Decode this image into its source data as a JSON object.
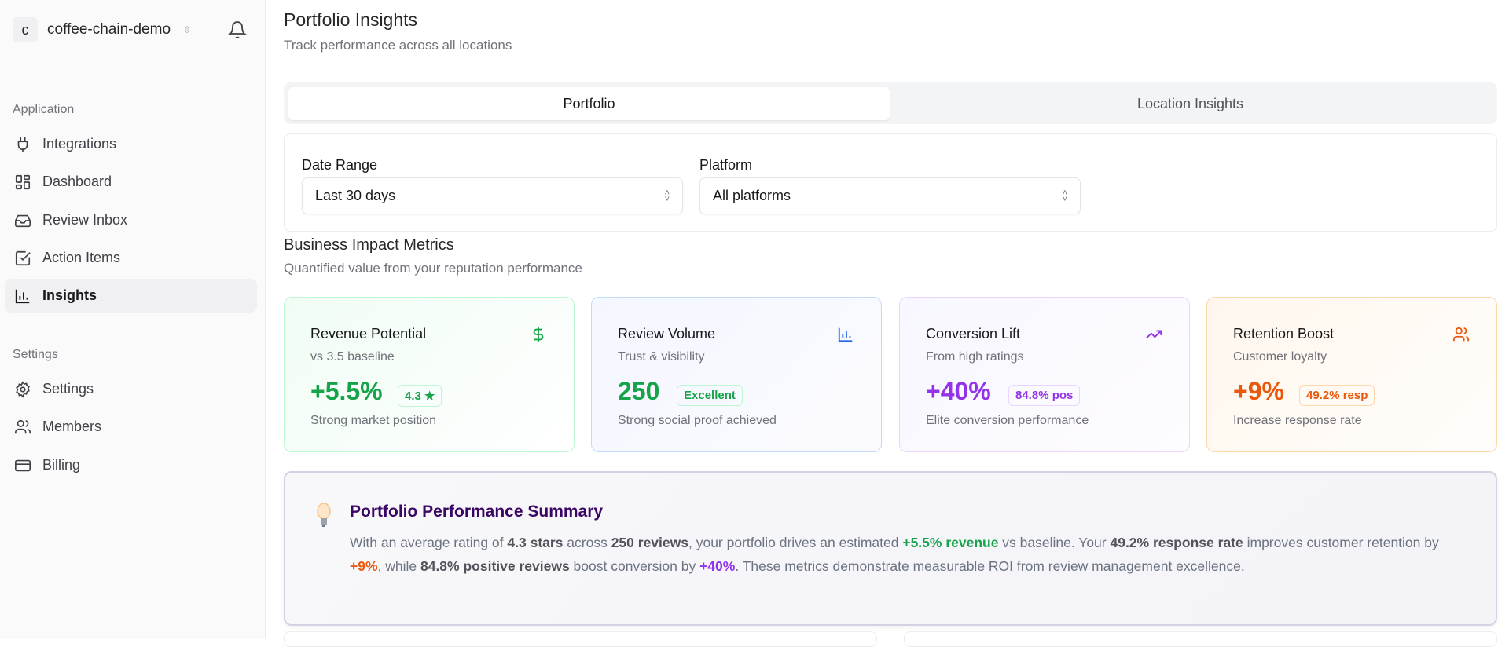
{
  "sidebar": {
    "workspace": {
      "initial": "c",
      "name": "coffee-chain-demo"
    },
    "sections": [
      {
        "label": "Application",
        "items": [
          {
            "label": "Integrations",
            "icon": "plug-icon"
          },
          {
            "label": "Dashboard",
            "icon": "layout-grid-icon"
          },
          {
            "label": "Review Inbox",
            "icon": "inbox-icon"
          },
          {
            "label": "Action Items",
            "icon": "check-square-icon"
          },
          {
            "label": "Insights",
            "icon": "bar-chart-icon",
            "active": true
          }
        ]
      },
      {
        "label": "Settings",
        "items": [
          {
            "label": "Settings",
            "icon": "gear-icon"
          },
          {
            "label": "Members",
            "icon": "users-icon"
          },
          {
            "label": "Billing",
            "icon": "credit-card-icon"
          }
        ]
      }
    ]
  },
  "header": {
    "title": "Portfolio Insights",
    "subtitle": "Track performance across all locations"
  },
  "tabs": [
    {
      "label": "Portfolio",
      "active": true
    },
    {
      "label": "Location Insights"
    }
  ],
  "filters": {
    "date_range": {
      "label": "Date Range",
      "value": "Last 30 days"
    },
    "platform": {
      "label": "Platform",
      "value": "All platforms"
    }
  },
  "metrics": {
    "title": "Business Impact Metrics",
    "subtitle": "Quantified value from your reputation performance",
    "cards": [
      {
        "title": "Revenue Potential",
        "sub": "vs 3.5 baseline",
        "value": "+5.5%",
        "badge": "4.3 ★",
        "desc": "Strong market position",
        "color": "#16a34a",
        "icon": "dollar-icon"
      },
      {
        "title": "Review Volume",
        "sub": "Trust & visibility",
        "value": "250",
        "badge": "Excellent",
        "desc": "Strong social proof achieved",
        "color": "#16a34a",
        "icon": "bar-chart-icon"
      },
      {
        "title": "Conversion Lift",
        "sub": "From high ratings",
        "value": "+40%",
        "badge": "84.8% pos",
        "desc": "Elite conversion performance",
        "color": "#9333ea",
        "icon": "trending-up-icon"
      },
      {
        "title": "Retention Boost",
        "sub": "Customer loyalty",
        "value": "+9%",
        "badge": "49.2% resp",
        "desc": "Increase response rate",
        "color": "#ea580c",
        "icon": "users-icon"
      }
    ]
  },
  "summary": {
    "title": "Portfolio Performance Summary",
    "parts": [
      "With an average rating of ",
      "4.3 stars",
      " across ",
      "250 reviews",
      ", your portfolio drives an estimated ",
      "+5.5% revenue",
      " vs baseline. Your ",
      "49.2% response rate",
      " improves customer retention by ",
      "+9%",
      ", while ",
      "84.8% positive reviews",
      " boost conversion by ",
      "+40%",
      ". These metrics demonstrate measurable ROI from review management excellence."
    ]
  }
}
